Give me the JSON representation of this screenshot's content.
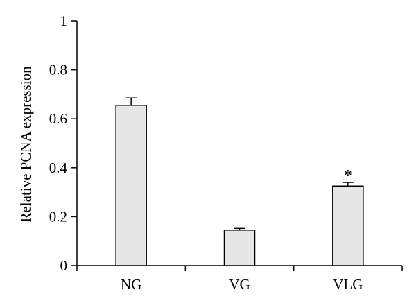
{
  "chart_data": {
    "type": "bar",
    "title": "",
    "xlabel": "",
    "ylabel": "Relative PCNA  expression",
    "ylim": [
      0,
      1
    ],
    "yticks": [
      0,
      0.2,
      0.4,
      0.6,
      0.8,
      1
    ],
    "ytick_labels": [
      "0",
      "0.2",
      "0.4",
      "0.6",
      "0.8",
      "1"
    ],
    "categories": [
      "NG",
      "VG",
      "VLG"
    ],
    "values": [
      0.655,
      0.145,
      0.325
    ],
    "errors": [
      0.03,
      0.007,
      0.015
    ],
    "annotations": [
      "",
      "",
      "*"
    ],
    "bar_color": "#e6e6e6",
    "edge_color": "#000000",
    "grid": false,
    "legend": "none"
  }
}
